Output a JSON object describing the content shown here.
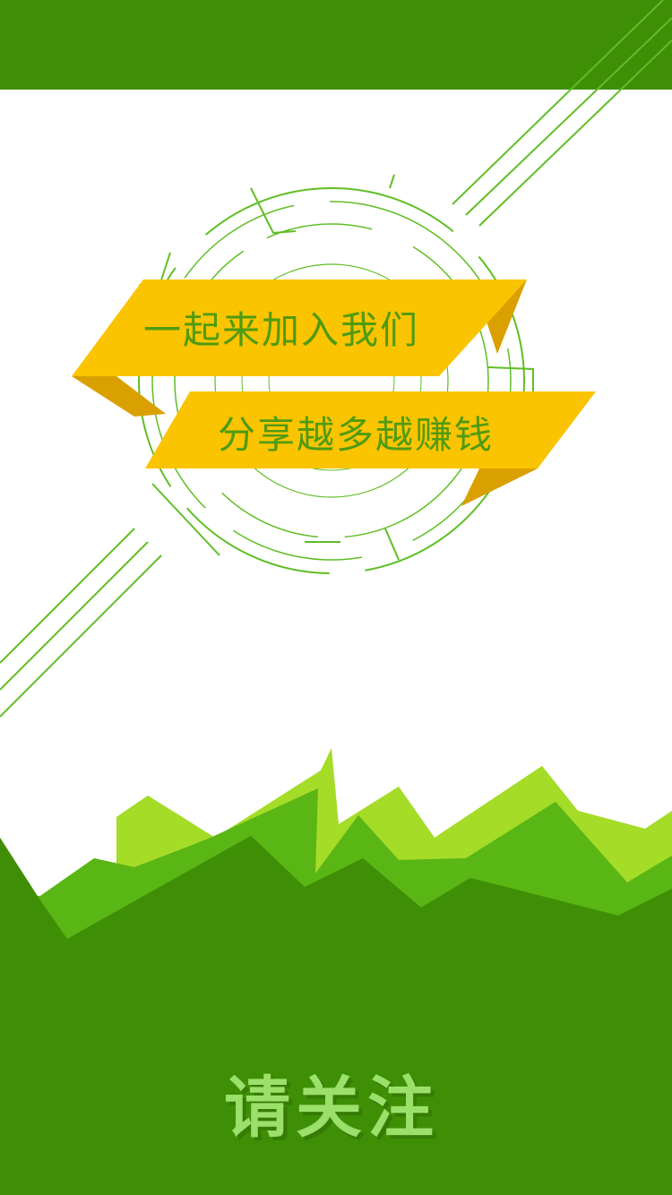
{
  "colors": {
    "dark_green": "#3f8f06",
    "mid_green": "#5ab614",
    "light_green": "#a5dc28",
    "line_green": "#5fbe24",
    "ribbon_yellow": "#fac400",
    "ribbon_shadow": "#d9a000",
    "ribbon_text": "#4f9b12",
    "cta_text": "#9be06a"
  },
  "banner": {
    "line1": "一起来加入我们",
    "line2": "分享越多越赚钱"
  },
  "footer": {
    "cta_label": "请关注"
  },
  "icons": {
    "emblem": "circular-target-emblem",
    "hills": "mountain-landscape"
  }
}
